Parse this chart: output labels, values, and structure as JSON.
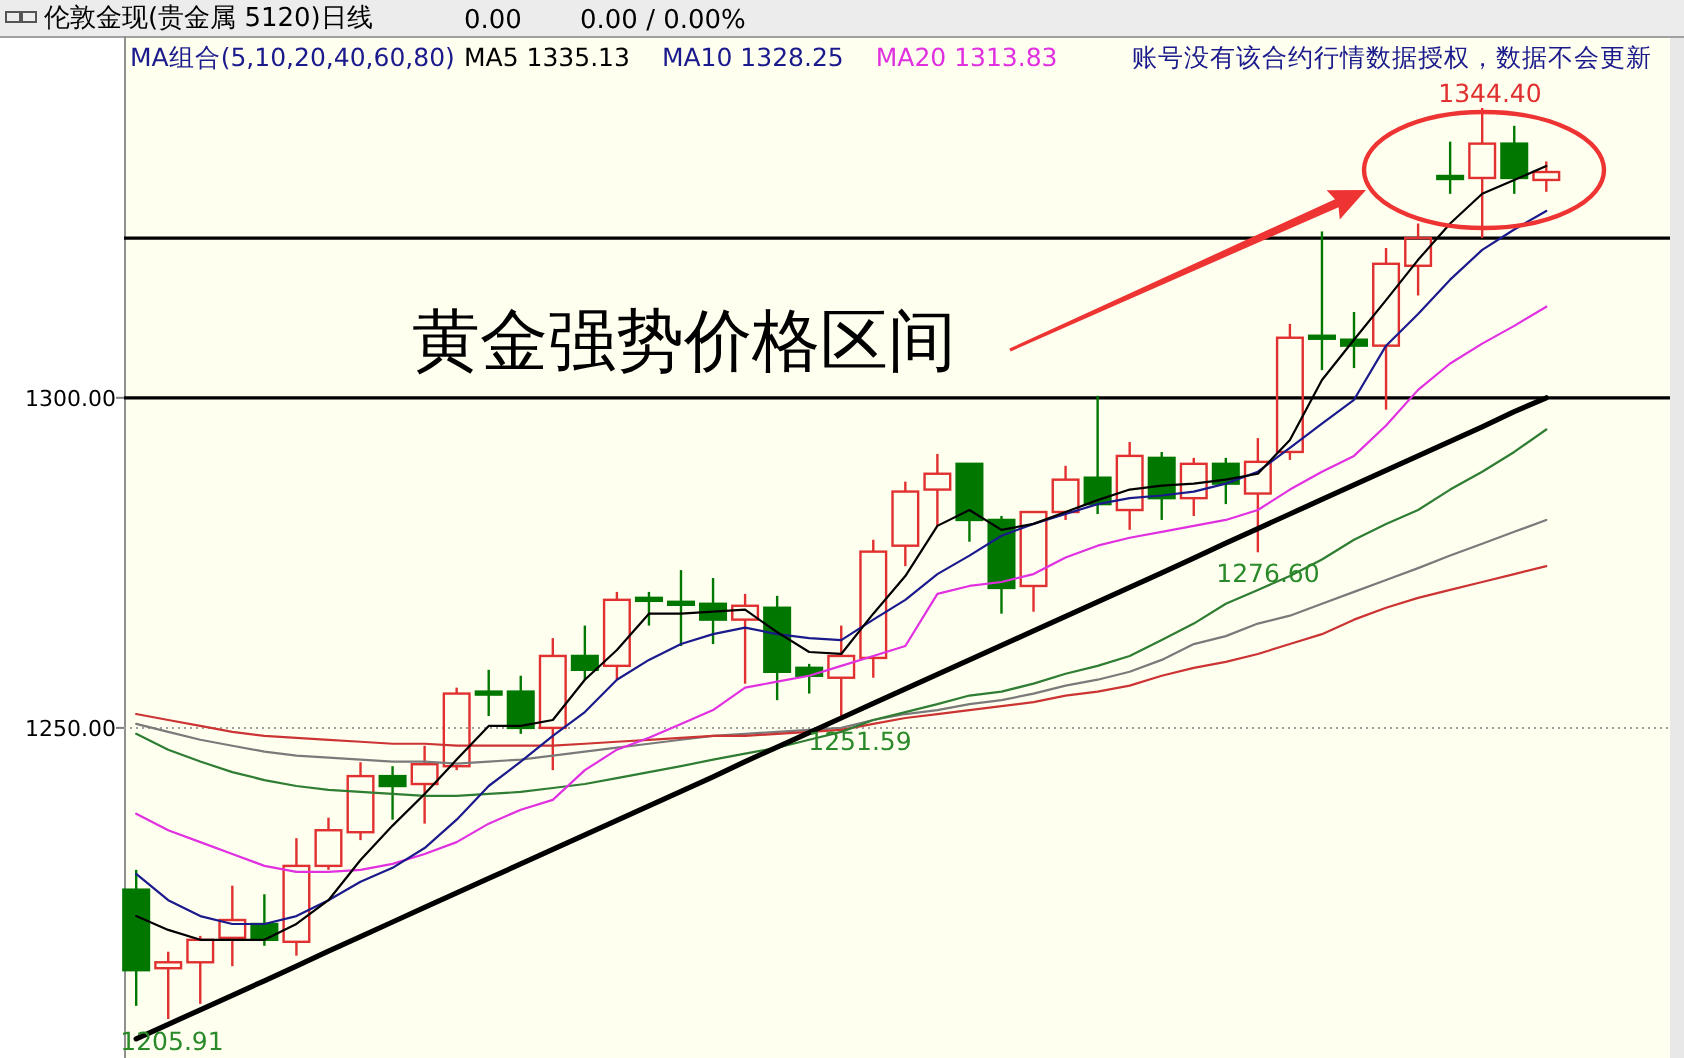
{
  "chart_data": {
    "type": "candlestick",
    "title": "伦敦金现(贵金属 5120)日线",
    "annotations": [
      "0.00",
      "0.00 / 0.00%",
      "MA组合(5,10,20,40,60,80)",
      "账号没有该合约行情数据授权，数据不会更新",
      "黄金强势价格区间",
      "1344.40",
      "1276.60",
      "1251.59",
      "1205.91"
    ],
    "categories": [
      null,
      null,
      null,
      null,
      null,
      null,
      null,
      null,
      null,
      null,
      null,
      null,
      null,
      null,
      null,
      null,
      null,
      null,
      null,
      null,
      null,
      null,
      null,
      null,
      null,
      null,
      null,
      null,
      null,
      null,
      null,
      null,
      null,
      null,
      null,
      null,
      null,
      null,
      null,
      null,
      null,
      null,
      null,
      null,
      null
    ],
    "ohlc": [
      [
        1225.5,
        1228.5,
        1207.9,
        1213.3
      ],
      [
        1213.6,
        1216.1,
        1205.91,
        1214.5
      ],
      [
        1214.5,
        1218.5,
        1208.2,
        1217.9
      ],
      [
        1218.2,
        1226.1,
        1213.9,
        1220.9
      ],
      [
        1220.3,
        1224.8,
        1217.0,
        1217.9
      ],
      [
        1217.6,
        1233.3,
        1215.5,
        1229.1
      ],
      [
        1229.1,
        1236.4,
        1228.5,
        1234.5
      ],
      [
        1234.2,
        1244.8,
        1233.0,
        1242.7
      ],
      [
        1242.7,
        1244.2,
        1236.1,
        1241.2
      ],
      [
        1241.5,
        1247.3,
        1235.5,
        1244.5
      ],
      [
        1244.2,
        1256.1,
        1243.6,
        1255.2
      ],
      [
        1255.5,
        1258.8,
        1251.8,
        1255.2
      ],
      [
        1255.5,
        1257.9,
        1249.1,
        1250.0
      ],
      [
        1250.0,
        1263.6,
        1243.6,
        1260.9
      ],
      [
        1260.9,
        1265.5,
        1257.3,
        1258.8
      ],
      [
        1259.4,
        1270.6,
        1257.3,
        1269.4
      ],
      [
        1269.7,
        1270.6,
        1265.5,
        1269.4
      ],
      [
        1269.1,
        1273.9,
        1262.4,
        1268.8
      ],
      [
        1268.8,
        1272.7,
        1262.7,
        1266.4
      ],
      [
        1266.4,
        1270.3,
        1256.7,
        1268.5
      ],
      [
        1268.2,
        1270.0,
        1254.2,
        1258.5
      ],
      [
        1259.1,
        1259.7,
        1255.2,
        1257.9
      ],
      [
        1257.6,
        1265.5,
        1251.59,
        1260.9
      ],
      [
        1260.6,
        1278.5,
        1257.6,
        1276.7
      ],
      [
        1277.6,
        1287.3,
        1274.5,
        1285.8
      ],
      [
        1286.1,
        1291.5,
        1280.6,
        1288.5
      ],
      [
        1290.0,
        1290.0,
        1278.2,
        1281.5
      ],
      [
        1281.5,
        1282.1,
        1267.3,
        1271.2
      ],
      [
        1271.5,
        1282.7,
        1267.6,
        1282.7
      ],
      [
        1282.7,
        1289.7,
        1281.5,
        1287.6
      ],
      [
        1287.9,
        1300.3,
        1282.4,
        1283.9
      ],
      [
        1283.0,
        1293.3,
        1280.0,
        1291.2
      ],
      [
        1290.9,
        1291.8,
        1281.5,
        1284.8
      ],
      [
        1284.8,
        1290.9,
        1282.1,
        1290.0
      ],
      [
        1290.0,
        1290.9,
        1283.9,
        1287.0
      ],
      [
        1285.5,
        1293.9,
        1276.6,
        1290.3
      ],
      [
        1291.8,
        1311.2,
        1290.6,
        1309.1
      ],
      [
        1309.4,
        1325.2,
        1304.2,
        1309.1
      ],
      [
        1308.8,
        1313.0,
        1304.5,
        1307.9
      ],
      [
        1307.9,
        1322.7,
        1298.2,
        1320.3
      ],
      [
        1320.0,
        1326.4,
        1315.5,
        1324.2
      ],
      [
        1333.6,
        1338.8,
        1330.9,
        1333.3
      ],
      [
        1333.3,
        1344.4,
        1324.2,
        1338.5
      ],
      [
        1338.5,
        1341.2,
        1330.9,
        1333.3
      ],
      [
        1333.0,
        1335.8,
        1331.2,
        1334.2
      ]
    ],
    "colors": [
      "#007800",
      "#e03030",
      "#e03030",
      "#e03030",
      "#007800",
      "#e03030",
      "#e03030",
      "#e03030",
      "#007800",
      "#e03030",
      "#e03030",
      "#007800",
      "#007800",
      "#e03030",
      "#007800",
      "#e03030",
      "#007800",
      "#007800",
      "#007800",
      "#e03030",
      "#007800",
      "#007800",
      "#e03030",
      "#e03030",
      "#e03030",
      "#e03030",
      "#007800",
      "#007800",
      "#e03030",
      "#e03030",
      "#007800",
      "#e03030",
      "#007800",
      "#e03030",
      "#007800",
      "#e03030",
      "#e03030",
      "#007800",
      "#007800",
      "#e03030",
      "#e03030",
      "#007800",
      "#e03030",
      "#007800",
      "#e03030"
    ],
    "series": [
      {
        "type": "line",
        "color": "#7a7a7a",
        "values": [
          1250.6,
          1249.4,
          1248.2,
          1247.3,
          1246.4,
          1245.8,
          1245.5,
          1245.2,
          1244.9,
          1244.9,
          1244.6,
          1244.9,
          1245.2,
          1245.8,
          1246.4,
          1247.0,
          1247.6,
          1248.2,
          1248.8,
          1249.1,
          1249.4,
          1249.7,
          1250.0,
          1251.2,
          1252.1,
          1252.7,
          1253.6,
          1254.2,
          1255.2,
          1256.4,
          1257.3,
          1258.5,
          1260.3,
          1262.7,
          1263.9,
          1265.8,
          1267.0,
          1268.8,
          1270.6,
          1272.4,
          1274.2,
          1276.1,
          1277.9,
          1279.7,
          1281.5
        ]
      },
      {
        "type": "line",
        "color": "#cc3333",
        "values": [
          1252.1,
          1251.2,
          1250.3,
          1249.4,
          1248.8,
          1248.5,
          1248.2,
          1247.9,
          1247.6,
          1247.6,
          1247.3,
          1247.3,
          1247.3,
          1247.3,
          1247.6,
          1247.9,
          1248.2,
          1248.5,
          1248.8,
          1248.8,
          1249.1,
          1249.4,
          1249.7,
          1250.6,
          1251.5,
          1252.1,
          1252.7,
          1253.3,
          1253.9,
          1254.9,
          1255.5,
          1256.4,
          1257.9,
          1259.1,
          1260.0,
          1261.2,
          1262.7,
          1264.2,
          1266.4,
          1268.2,
          1269.7,
          1270.9,
          1272.1,
          1273.3,
          1274.5
        ]
      },
      {
        "type": "line",
        "color": "#2e7d32",
        "values": [
          1249.1,
          1246.7,
          1244.9,
          1243.3,
          1242.1,
          1241.2,
          1240.6,
          1240.3,
          1240.0,
          1239.7,
          1239.7,
          1240.0,
          1240.3,
          1240.9,
          1241.5,
          1242.4,
          1243.3,
          1244.2,
          1245.2,
          1246.1,
          1247.0,
          1248.2,
          1249.4,
          1251.2,
          1252.4,
          1253.6,
          1254.9,
          1255.5,
          1256.7,
          1258.2,
          1259.4,
          1260.9,
          1263.3,
          1265.8,
          1268.8,
          1270.9,
          1273.0,
          1275.5,
          1278.5,
          1280.9,
          1283.0,
          1286.1,
          1288.8,
          1291.8,
          1295.2
        ]
      },
      {
        "type": "line",
        "name": "MA20 1313.83",
        "color": "#e030e0",
        "values": [
          1237.0,
          1234.5,
          1232.7,
          1230.9,
          1229.1,
          1228.2,
          1228.2,
          1228.5,
          1229.4,
          1230.9,
          1232.7,
          1235.5,
          1237.6,
          1239.1,
          1243.6,
          1246.7,
          1248.5,
          1250.6,
          1252.7,
          1256.1,
          1257.0,
          1257.9,
          1259.4,
          1260.9,
          1262.4,
          1270.3,
          1271.5,
          1272.1,
          1273.3,
          1275.8,
          1277.6,
          1278.8,
          1279.7,
          1280.6,
          1281.5,
          1283.0,
          1286.1,
          1288.8,
          1291.2,
          1295.8,
          1301.2,
          1305.2,
          1308.2,
          1310.9,
          1313.8
        ]
      },
      {
        "type": "line",
        "name": "MA10 1328.25",
        "color": "#1a1a8c",
        "values": [
          1227.9,
          1223.9,
          1221.5,
          1220.3,
          1220.3,
          1221.5,
          1223.9,
          1226.7,
          1228.8,
          1231.8,
          1236.1,
          1241.2,
          1244.9,
          1248.8,
          1252.4,
          1257.3,
          1260.3,
          1262.7,
          1264.2,
          1265.2,
          1264.2,
          1263.6,
          1263.3,
          1266.4,
          1269.4,
          1273.3,
          1276.1,
          1279.1,
          1280.9,
          1282.4,
          1283.9,
          1284.8,
          1285.2,
          1285.8,
          1287.0,
          1288.8,
          1292.4,
          1296.1,
          1299.7,
          1307.9,
          1312.7,
          1317.9,
          1322.4,
          1325.5,
          1328.3
        ]
      },
      {
        "type": "line",
        "name": "MA5 1335.13",
        "color": "#000000",
        "values": [
          1221.5,
          1219.4,
          1217.9,
          1217.9,
          1217.9,
          1220.3,
          1223.9,
          1230.0,
          1235.2,
          1240.0,
          1245.2,
          1250.3,
          1250.3,
          1251.2,
          1257.3,
          1261.8,
          1267.3,
          1267.3,
          1267.6,
          1267.9,
          1264.5,
          1261.5,
          1261.2,
          1267.3,
          1273.0,
          1280.6,
          1283.0,
          1280.0,
          1280.9,
          1282.7,
          1284.5,
          1286.1,
          1286.7,
          1287.0,
          1287.6,
          1288.5,
          1293.6,
          1302.7,
          1308.8,
          1314.8,
          1320.9,
          1326.4,
          1330.9,
          1333.0,
          1335.1
        ]
      },
      {
        "type": "line",
        "color": "#000000",
        "values": [
          1202.9,
          1205.1,
          1207.3,
          1209.5,
          1211.7,
          1213.9,
          1216.2,
          1218.4,
          1220.6,
          1222.8,
          1225.0,
          1227.2,
          1229.4,
          1231.6,
          1233.8,
          1236.0,
          1238.2,
          1240.4,
          1242.6,
          1244.9,
          1247.1,
          1249.3,
          1251.5,
          1253.7,
          1255.9,
          1258.1,
          1260.3,
          1262.5,
          1264.7,
          1266.9,
          1269.1,
          1271.3,
          1273.5,
          1275.7,
          1278.0,
          1280.2,
          1282.4,
          1284.6,
          1286.8,
          1289.0,
          1291.2,
          1293.4,
          1295.6,
          1297.9,
          1300.0
        ]
      }
    ],
    "ylim": [
      1200,
      1354.5
    ],
    "yticks": [
      {
        "value": 1250,
        "label": "1250.00"
      },
      {
        "value": 1300,
        "label": "1300.00"
      }
    ],
    "tick_labels": "y",
    "legend": "top",
    "ref_lines": [
      {
        "axis": "y",
        "value": 1250,
        "color": "#a0a0a0",
        "line_style": "dotted"
      },
      {
        "axis": "y",
        "value": 1300,
        "color": "#000000"
      },
      {
        "axis": "y",
        "value": 1324.2,
        "color": "#000000"
      }
    ]
  }
}
